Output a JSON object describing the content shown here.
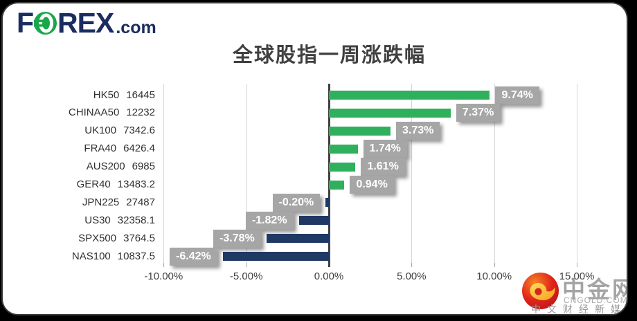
{
  "brand": {
    "logo_f": "F",
    "logo_rex": "REX",
    "logo_com": ".com",
    "navy": "#1a2c60",
    "green": "#18a84b"
  },
  "chart_data": {
    "type": "bar",
    "orientation": "horizontal",
    "title": "全球股指一周涨跌幅",
    "categories": [
      "HK50",
      "CHINAA50",
      "UK100",
      "FRA40",
      "AUS200",
      "GER40",
      "JPN225",
      "US30",
      "SPX500",
      "NAS100"
    ],
    "close_values": [
      "16445",
      "12232",
      "7342.6",
      "6426.4",
      "6985",
      "13483.2",
      "27487",
      "32358.1",
      "3764.5",
      "10837.5"
    ],
    "values": [
      9.74,
      7.37,
      3.73,
      1.74,
      1.61,
      0.94,
      -0.2,
      -1.82,
      -3.78,
      -6.42
    ],
    "value_labels": [
      "9.74%",
      "7.37%",
      "3.73%",
      "1.74%",
      "1.61%",
      "0.94%",
      "-0.20%",
      "-1.82%",
      "-3.78%",
      "-6.42%"
    ],
    "x_ticks": [
      "-10.00%",
      "-5.00%",
      "0.00%",
      "5.00%",
      "10.00%",
      "15.00%"
    ],
    "x_tick_values": [
      -10,
      -5,
      0,
      5,
      10,
      15
    ],
    "xlim": [
      -10,
      15
    ],
    "grid": true,
    "legend": false,
    "positive_color": "#2eb05c",
    "negative_color": "#1f3864",
    "label_bg_color": "#a6a6a6",
    "gridline_color": "#d6d6d6",
    "axis_text_color": "#404040"
  },
  "watermark": {
    "name": "中金网",
    "domain": "CNGOLD.COM.CN",
    "tagline": "中文财经新媒体"
  }
}
